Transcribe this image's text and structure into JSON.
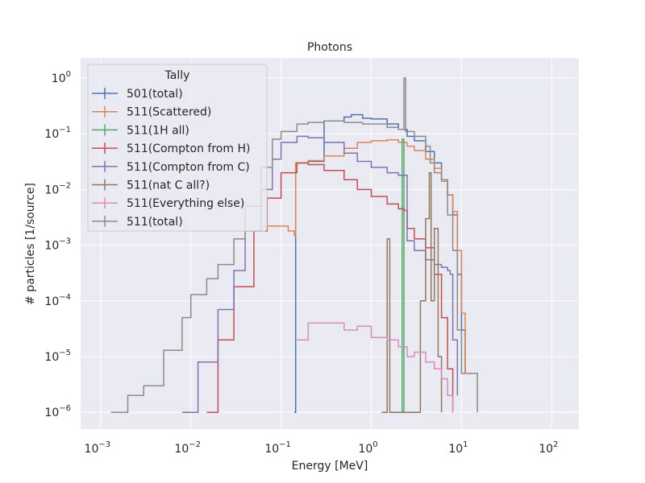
{
  "chart_data": {
    "type": "line",
    "title": "Photons",
    "xlabel": "Energy [MeV]",
    "ylabel": "# particles [1/source]",
    "x_scale": "log",
    "y_scale": "log",
    "xlim": [
      0.0006,
      200
    ],
    "ylim": [
      5e-07,
      2.3
    ],
    "x_ticks": [
      {
        "value": 0.001,
        "base": "10",
        "exp": "−3"
      },
      {
        "value": 0.01,
        "base": "10",
        "exp": "−2"
      },
      {
        "value": 0.1,
        "base": "10",
        "exp": "−1"
      },
      {
        "value": 1,
        "base": "10",
        "exp": "0"
      },
      {
        "value": 10,
        "base": "10",
        "exp": "1"
      },
      {
        "value": 100,
        "base": "10",
        "exp": "2"
      }
    ],
    "y_ticks": [
      {
        "value": 1e-06,
        "base": "10",
        "exp": "−6"
      },
      {
        "value": 1e-05,
        "base": "10",
        "exp": "−5"
      },
      {
        "value": 0.0001,
        "base": "10",
        "exp": "−4"
      },
      {
        "value": 0.001,
        "base": "10",
        "exp": "−3"
      },
      {
        "value": 0.01,
        "base": "10",
        "exp": "−2"
      },
      {
        "value": 0.1,
        "base": "10",
        "exp": "−1"
      },
      {
        "value": 1,
        "base": "10",
        "exp": "0"
      }
    ],
    "grid": true,
    "legend": {
      "title": "Tally",
      "placement": "top-left"
    },
    "series": [
      {
        "name": "501(total)",
        "color": "#4c72b0",
        "points": [
          [
            0.14,
            1e-06
          ],
          [
            0.145,
            0.03
          ],
          [
            0.2,
            0.032
          ],
          [
            0.3,
            0.17
          ],
          [
            0.5,
            0.2
          ],
          [
            0.6,
            0.22
          ],
          [
            0.8,
            0.19
          ],
          [
            1.0,
            0.185
          ],
          [
            1.5,
            0.15
          ],
          [
            2.0,
            0.12
          ],
          [
            2.5,
            0.09
          ],
          [
            3.0,
            0.075
          ],
          [
            4.0,
            0.048
          ],
          [
            5.0,
            0.03
          ],
          [
            6.0,
            0.015
          ],
          [
            7.0,
            0.008
          ],
          [
            8.0,
            0.0035
          ],
          [
            9.0,
            0.0003
          ],
          [
            10.0,
            3e-05
          ],
          [
            11.0,
            5e-06
          ]
        ]
      },
      {
        "name": "511(Scattered)",
        "color": "#dd8452",
        "points": [
          [
            0.04,
            0.0018
          ],
          [
            0.06,
            0.0022
          ],
          [
            0.09,
            0.0022
          ],
          [
            0.12,
            0.0018
          ],
          [
            0.14,
            0.0015
          ],
          [
            0.145,
            0.03
          ],
          [
            0.2,
            0.033
          ],
          [
            0.3,
            0.04
          ],
          [
            0.5,
            0.055
          ],
          [
            0.7,
            0.07
          ],
          [
            1.0,
            0.075
          ],
          [
            1.5,
            0.078
          ],
          [
            2.0,
            0.07
          ],
          [
            2.5,
            0.06
          ],
          [
            3.0,
            0.05
          ],
          [
            4.0,
            0.035
          ],
          [
            5.0,
            0.024
          ],
          [
            6.0,
            0.014
          ],
          [
            7.0,
            0.008
          ],
          [
            8.0,
            0.004
          ],
          [
            9.0,
            0.0008
          ],
          [
            10.0,
            6e-05
          ],
          [
            11.0,
            5e-06
          ]
        ]
      },
      {
        "name": "511(1H all)",
        "color": "#55a868",
        "points": [
          [
            2.2,
            1e-06
          ],
          [
            2.2,
            0.08
          ],
          [
            2.3,
            0.08
          ],
          [
            2.3,
            1e-06
          ]
        ]
      },
      {
        "name": "511(Compton from H)",
        "color": "#c44e52",
        "points": [
          [
            0.015,
            1e-06
          ],
          [
            0.02,
            2e-05
          ],
          [
            0.03,
            0.00018
          ],
          [
            0.05,
            0.0018
          ],
          [
            0.07,
            0.007
          ],
          [
            0.1,
            0.02
          ],
          [
            0.15,
            0.03
          ],
          [
            0.2,
            0.028
          ],
          [
            0.3,
            0.022
          ],
          [
            0.5,
            0.015
          ],
          [
            0.7,
            0.01
          ],
          [
            1.0,
            0.0075
          ],
          [
            1.5,
            0.0055
          ],
          [
            2.0,
            0.0045
          ],
          [
            2.3,
            0.0042
          ],
          [
            2.5,
            0.002
          ],
          [
            3.0,
            0.0013
          ],
          [
            4.0,
            0.0009
          ],
          [
            5.0,
            0.0003
          ],
          [
            6.0,
            5e-05
          ],
          [
            7.0,
            6e-06
          ],
          [
            8.0,
            1e-06
          ]
        ]
      },
      {
        "name": "511(Compton from C)",
        "color": "#8172b2",
        "points": [
          [
            0.008,
            1e-06
          ],
          [
            0.012,
            8e-06
          ],
          [
            0.02,
            7e-05
          ],
          [
            0.03,
            0.00035
          ],
          [
            0.04,
            0.0018
          ],
          [
            0.06,
            0.01
          ],
          [
            0.08,
            0.035
          ],
          [
            0.1,
            0.07
          ],
          [
            0.15,
            0.09
          ],
          [
            0.2,
            0.085
          ],
          [
            0.3,
            0.07
          ],
          [
            0.5,
            0.045
          ],
          [
            0.7,
            0.032
          ],
          [
            1.0,
            0.025
          ],
          [
            1.5,
            0.02
          ],
          [
            2.0,
            0.018
          ],
          [
            2.3,
            0.018
          ],
          [
            2.5,
            0.0012
          ],
          [
            3.0,
            0.0008
          ],
          [
            4.0,
            0.00055
          ],
          [
            5.0,
            0.00045
          ],
          [
            6.0,
            0.0004
          ],
          [
            7.0,
            0.00035
          ],
          [
            7.5,
            0.0003
          ],
          [
            8.0,
            2e-05
          ],
          [
            9.0,
            2e-06
          ]
        ]
      },
      {
        "name": "511(nat C all?)",
        "color": "#937860",
        "points": [
          [
            1.3,
            1e-06
          ],
          [
            1.5,
            0.0013
          ],
          [
            1.6,
            1e-06
          ],
          [
            2.0,
            1e-06
          ],
          [
            3.5,
            0.0001
          ],
          [
            4.0,
            0.003
          ],
          [
            4.4,
            0.02
          ],
          [
            4.6,
            0.0001
          ],
          [
            5.0,
            0.002
          ],
          [
            5.5,
            1e-05
          ],
          [
            6.0,
            1e-06
          ]
        ]
      },
      {
        "name": "511(Everything else)",
        "color": "#da8bc3",
        "points": [
          [
            0.15,
            2e-05
          ],
          [
            0.2,
            4e-05
          ],
          [
            0.3,
            4e-05
          ],
          [
            0.5,
            3e-05
          ],
          [
            0.7,
            3.5e-05
          ],
          [
            1.0,
            2.2e-05
          ],
          [
            1.5,
            2e-05
          ],
          [
            2.0,
            1.5e-05
          ],
          [
            2.5,
            1e-05
          ],
          [
            3.0,
            1.2e-05
          ],
          [
            4.0,
            8e-06
          ],
          [
            5.0,
            6e-06
          ],
          [
            6.0,
            4e-06
          ],
          [
            7.0,
            2e-06
          ],
          [
            8.0,
            1e-06
          ]
        ]
      },
      {
        "name": "511(total)",
        "color": "#8c8c8c",
        "points": [
          [
            0.0013,
            1e-06
          ],
          [
            0.002,
            2e-06
          ],
          [
            0.003,
            3e-06
          ],
          [
            0.005,
            1.3e-05
          ],
          [
            0.008,
            5e-05
          ],
          [
            0.01,
            0.00013
          ],
          [
            0.015,
            0.00025
          ],
          [
            0.02,
            0.00045
          ],
          [
            0.03,
            0.0013
          ],
          [
            0.04,
            0.005
          ],
          [
            0.06,
            0.025
          ],
          [
            0.08,
            0.08
          ],
          [
            0.1,
            0.11
          ],
          [
            0.15,
            0.15
          ],
          [
            0.2,
            0.16
          ],
          [
            0.3,
            0.17
          ],
          [
            0.5,
            0.16
          ],
          [
            0.8,
            0.15
          ],
          [
            1.0,
            0.15
          ],
          [
            1.5,
            0.13
          ],
          [
            2.0,
            0.12
          ],
          [
            2.3,
            1.0
          ],
          [
            2.4,
            0.11
          ],
          [
            3.0,
            0.09
          ],
          [
            4.0,
            0.06
          ],
          [
            4.5,
            0.03
          ],
          [
            5.0,
            0.02
          ],
          [
            6.0,
            0.015
          ],
          [
            7.0,
            0.0035
          ],
          [
            8.0,
            0.0008
          ],
          [
            9.0,
            3e-05
          ],
          [
            10.0,
            5e-06
          ],
          [
            15.0,
            1e-06
          ]
        ]
      }
    ]
  }
}
